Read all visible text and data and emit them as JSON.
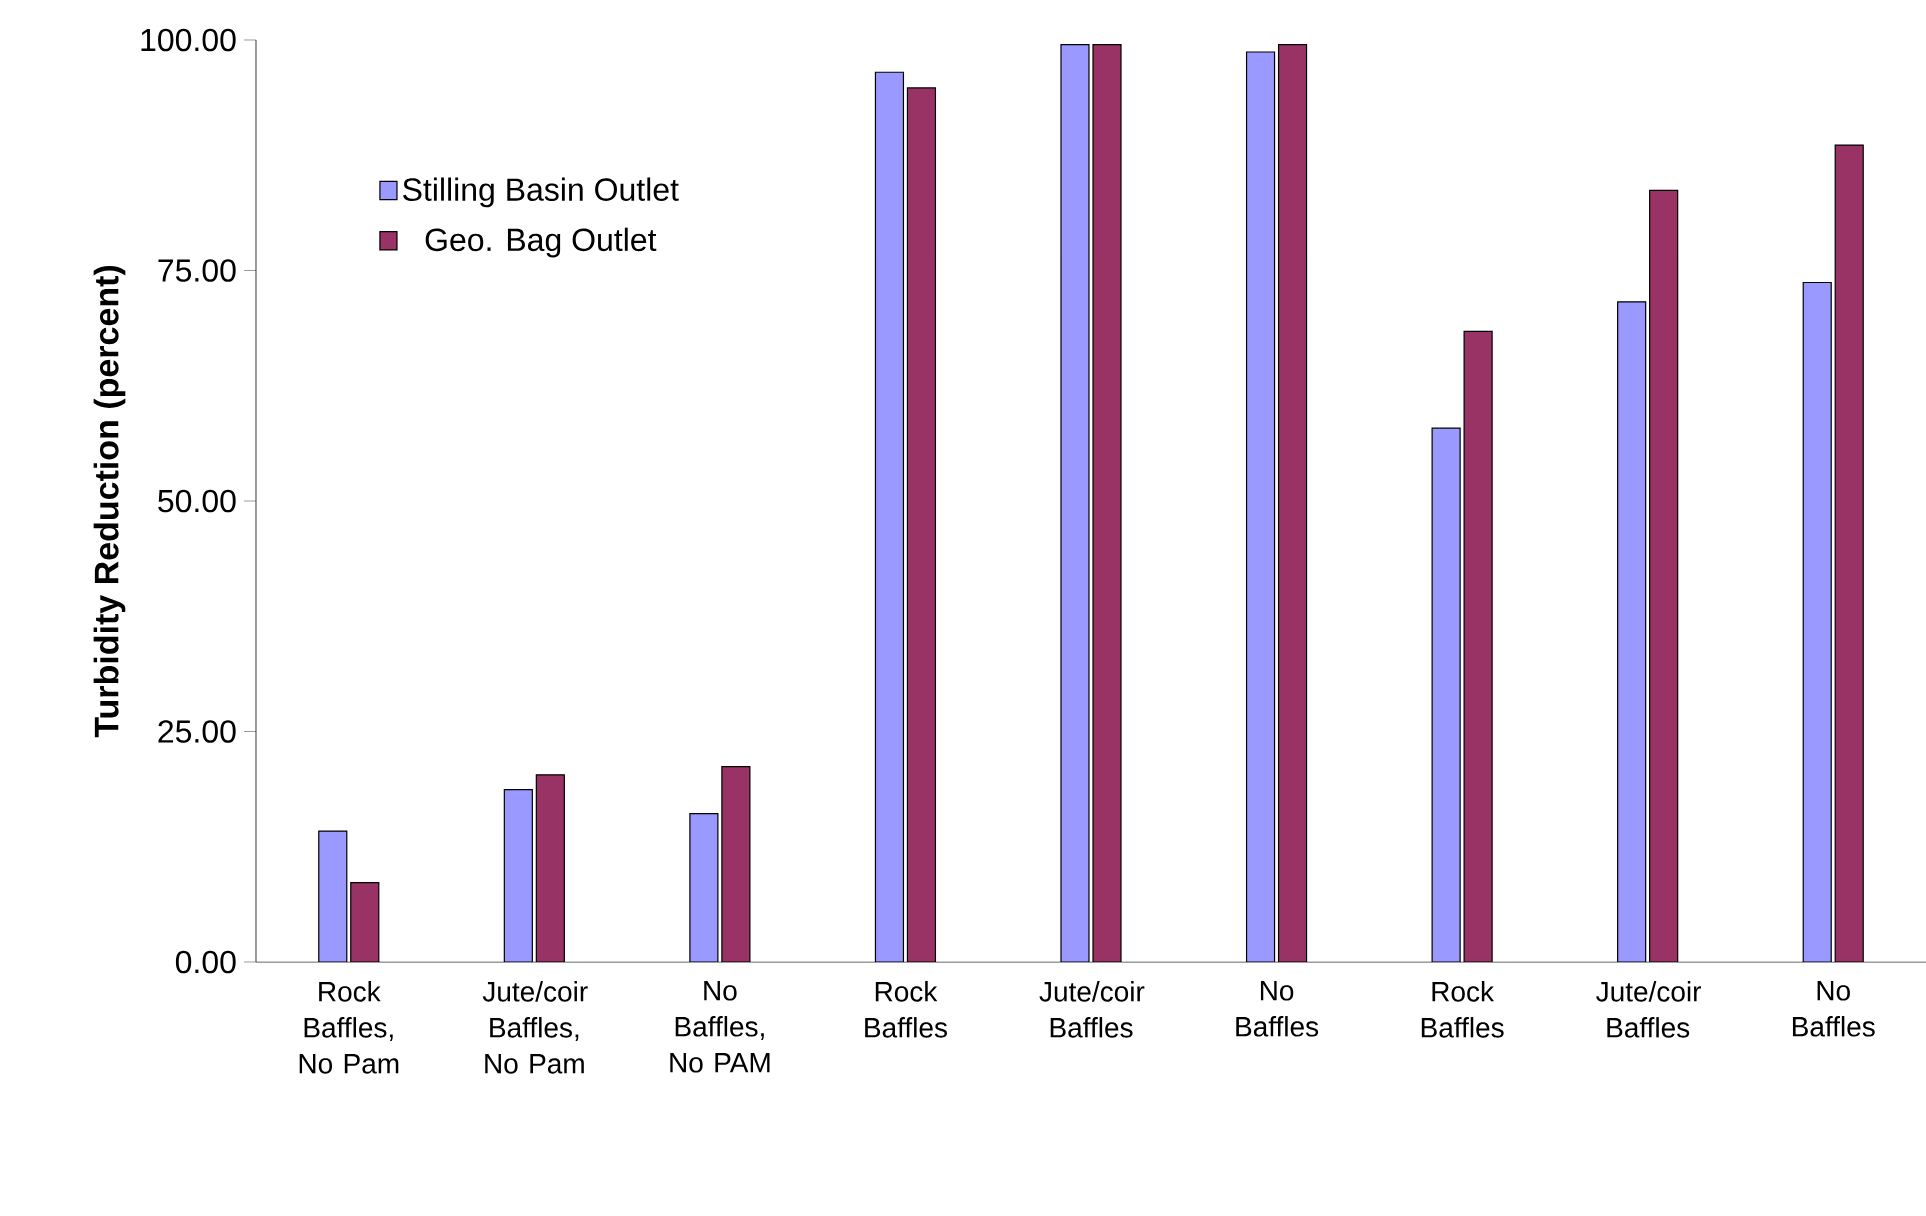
{
  "chart_data": {
    "type": "bar",
    "ylabel": "Turbidity Reduction (percent)",
    "categories": [
      "Rock Baffles, No Pam",
      "Jute/coir Baffles, No Pam",
      "No Baffles, No PAM",
      "Rock Baffles",
      "Jute/coir Baffles",
      "No Baffles",
      "Rock Baffles",
      "Jute/coir Baffles",
      "No Baffles"
    ],
    "series": [
      {
        "name": "Stilling Basin Outlet",
        "color": "#9999ff",
        "values": [
          14.2,
          18.7,
          16.1,
          96.5,
          99.5,
          98.7,
          57.9,
          71.6,
          73.7
        ]
      },
      {
        "name": "Geo. Bag Outlet",
        "color": "#993366",
        "values": [
          8.6,
          20.3,
          21.2,
          94.8,
          99.5,
          99.5,
          68.4,
          83.7,
          88.6
        ]
      }
    ],
    "ylim": [
      0,
      100
    ],
    "yticks": [
      {
        "value": 0,
        "label": "0.00"
      },
      {
        "value": 25,
        "label": "25.00"
      },
      {
        "value": 50,
        "label": "50.00"
      },
      {
        "value": 75,
        "label": "75.00"
      },
      {
        "value": 100,
        "label": "100.00"
      }
    ],
    "grid": false,
    "legend": "top left"
  }
}
